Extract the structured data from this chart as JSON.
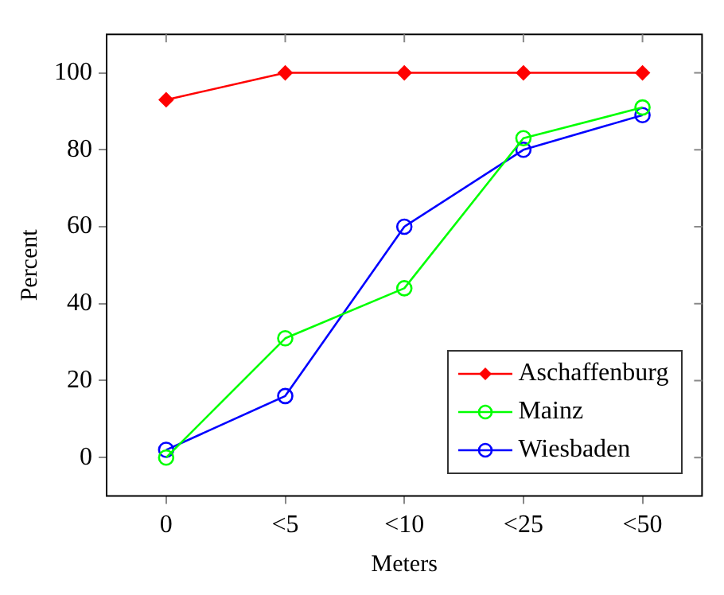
{
  "chart_data": {
    "type": "line",
    "xlabel": "Meters",
    "ylabel": "Percent",
    "categories": [
      "0",
      "<5",
      "<10",
      "<25",
      "<50"
    ],
    "series": [
      {
        "name": "Aschaffenburg",
        "color": "#ff0000",
        "marker": "diamond",
        "values": [
          93,
          100,
          100,
          100,
          100
        ]
      },
      {
        "name": "Mainz",
        "color": "#00ff00",
        "marker": "circle",
        "values": [
          0,
          31,
          44,
          83,
          91
        ]
      },
      {
        "name": "Wiesbaden",
        "color": "#0000ff",
        "marker": "circle",
        "values": [
          2,
          16,
          60,
          80,
          89
        ]
      }
    ],
    "ylim": [
      -10,
      110
    ],
    "yticks": [
      0,
      20,
      40,
      60,
      80,
      100
    ],
    "grid": false,
    "legend": "bottom right",
    "line_style": "solid"
  }
}
